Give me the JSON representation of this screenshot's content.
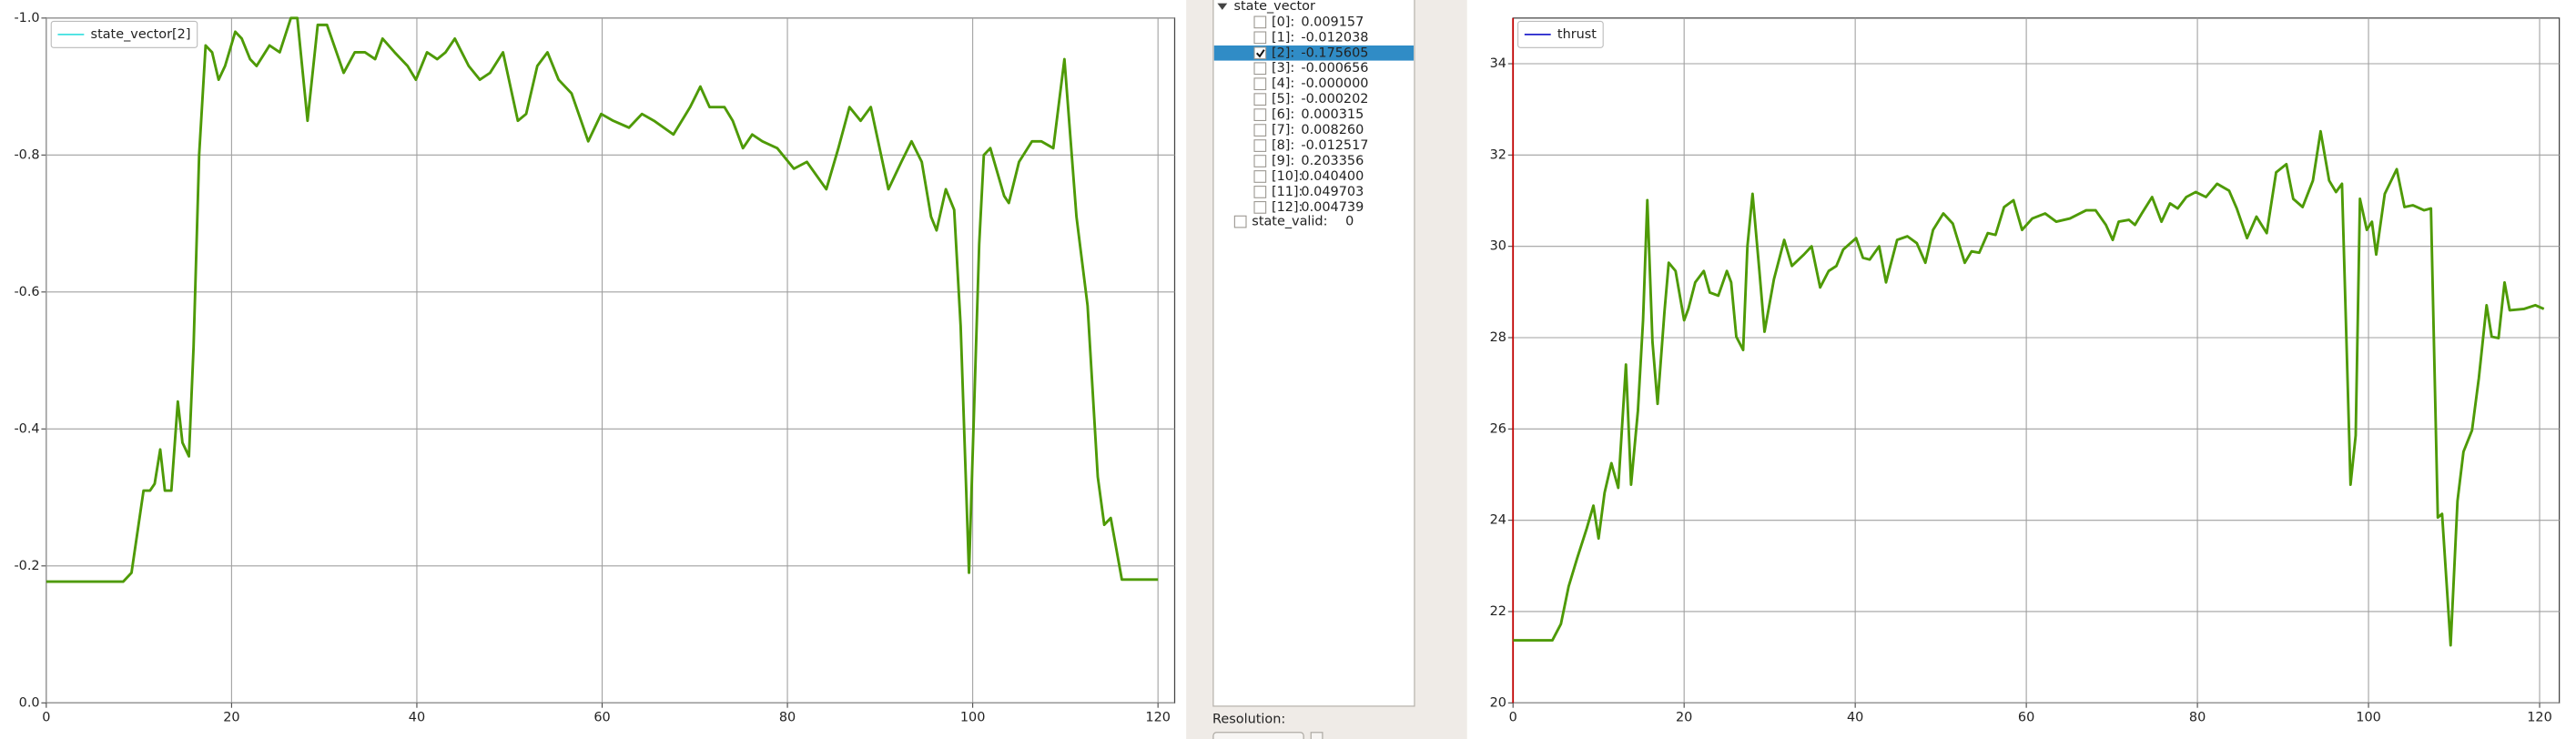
{
  "chart_data": [
    {
      "type": "line",
      "legend": "top-left",
      "grid": true,
      "xlim": [
        0,
        121.8
      ],
      "ylim": [
        0,
        -1.0
      ],
      "xticks": [
        0,
        20,
        40,
        60,
        80,
        100,
        120
      ],
      "yticks": [
        {
          "value": -1.0,
          "label": "-1.0"
        },
        {
          "value": -0.8,
          "label": "-0.8"
        },
        {
          "value": -0.6,
          "label": "-0.6"
        },
        {
          "value": -0.4,
          "label": "-0.4"
        },
        {
          "value": -0.2,
          "label": "-0.2"
        },
        {
          "value": 0,
          "label": "0.0"
        }
      ],
      "x": [
        0,
        8.3,
        9.2,
        10.5,
        11.2,
        11.7,
        12.3,
        12.8,
        13.5,
        14.2,
        14.7,
        15.4,
        15.9,
        16.5,
        17.2,
        17.9,
        18.6,
        19.3,
        20.4,
        21.1,
        22.0,
        22.7,
        24.1,
        25.2,
        26.4,
        27.1,
        28.2,
        29.3,
        30.3,
        32.1,
        33.3,
        34.4,
        35.5,
        36.3,
        37.6,
        39.0,
        39.9,
        41.1,
        42.2,
        43.1,
        44.1,
        45.6,
        46.8,
        47.9,
        49.3,
        50.9,
        51.8,
        53.0,
        54.1,
        55.3,
        56.7,
        58.5,
        59.9,
        61.2,
        62.9,
        64.3,
        65.6,
        67.7,
        69.5,
        70.6,
        71.6,
        73.2,
        74.1,
        75.2,
        76.2,
        77.3,
        78.9,
        80.7,
        82.1,
        84.2,
        85.5,
        86.7,
        87.9,
        89.0,
        90.9,
        92.3,
        93.4,
        94.5,
        95.5,
        96.1,
        97.1,
        98.0,
        98.7,
        99.6,
        100.7,
        101.2,
        101.9,
        103.4,
        103.9,
        105.0,
        106.4,
        107.4,
        108.7,
        109.9,
        111.2,
        112.4,
        113.5,
        114.2,
        114.9,
        116.1,
        120
      ],
      "series": [
        {
          "name": "state_vector[2]",
          "color": "#4e9a06",
          "legend_color": "#3fe0e0",
          "values": [
            -0.177,
            -0.177,
            -0.19,
            -0.31,
            -0.31,
            -0.32,
            -0.37,
            -0.31,
            -0.31,
            -0.44,
            -0.38,
            -0.36,
            -0.52,
            -0.8,
            -0.96,
            -0.95,
            -0.91,
            -0.93,
            -0.98,
            -0.97,
            -0.94,
            -0.93,
            -0.96,
            -0.95,
            -1.0,
            -1.0,
            -0.85,
            -0.99,
            -0.99,
            -0.92,
            -0.95,
            -0.95,
            -0.94,
            -0.97,
            -0.95,
            -0.93,
            -0.91,
            -0.95,
            -0.94,
            -0.95,
            -0.97,
            -0.93,
            -0.91,
            -0.92,
            -0.95,
            -0.85,
            -0.86,
            -0.93,
            -0.95,
            -0.91,
            -0.89,
            -0.82,
            -0.86,
            -0.85,
            -0.84,
            -0.86,
            -0.85,
            -0.83,
            -0.87,
            -0.9,
            -0.87,
            -0.87,
            -0.85,
            -0.81,
            -0.83,
            -0.82,
            -0.81,
            -0.78,
            -0.79,
            -0.75,
            -0.81,
            -0.87,
            -0.85,
            -0.87,
            -0.75,
            -0.79,
            -0.82,
            -0.79,
            -0.71,
            -0.69,
            -0.75,
            -0.72,
            -0.55,
            -0.19,
            -0.67,
            -0.8,
            -0.81,
            -0.74,
            -0.73,
            -0.79,
            -0.82,
            -0.82,
            -0.81,
            -0.94,
            -0.71,
            -0.58,
            -0.33,
            -0.26,
            -0.27,
            -0.18,
            -0.18
          ]
        }
      ]
    },
    {
      "type": "line",
      "legend": "top-left",
      "grid": true,
      "xlim": [
        0,
        122.3
      ],
      "ylim": [
        20,
        35
      ],
      "xticks": [
        0,
        20,
        40,
        60,
        80,
        100,
        120
      ],
      "yticks": [
        20,
        22,
        24,
        26,
        28,
        30,
        32,
        34
      ],
      "x": [
        0,
        4.6,
        5.6,
        6.5,
        7.5,
        8.6,
        9.4,
        10.0,
        10.7,
        11.5,
        12.3,
        13.2,
        13.8,
        14.6,
        15.2,
        15.7,
        16.3,
        16.9,
        17.7,
        18.2,
        19.0,
        20.0,
        20.5,
        21.3,
        22.3,
        23.0,
        24.0,
        25.0,
        25.5,
        26.1,
        26.9,
        27.4,
        28.0,
        28.8,
        29.4,
        30.5,
        31.7,
        32.6,
        34.0,
        34.9,
        35.9,
        36.9,
        37.8,
        38.6,
        40.1,
        40.9,
        41.7,
        42.8,
        43.6,
        44.9,
        46.1,
        47.2,
        48.2,
        49.1,
        50.3,
        51.4,
        52.8,
        53.6,
        54.5,
        55.5,
        56.4,
        57.4,
        58.5,
        59.5,
        60.7,
        62.2,
        63.5,
        65.1,
        67.0,
        68.1,
        69.3,
        70.1,
        70.8,
        72.0,
        72.7,
        73.5,
        74.7,
        75.8,
        76.8,
        77.7,
        78.7,
        79.8,
        81.0,
        82.3,
        83.7,
        84.6,
        85.8,
        86.9,
        88.1,
        89.2,
        90.4,
        91.2,
        92.3,
        93.5,
        94.4,
        95.4,
        96.2,
        96.9,
        97.9,
        98.5,
        99.0,
        99.8,
        100.4,
        100.9,
        101.9,
        103.3,
        104.2,
        105.2,
        106.5,
        107.3,
        108.1,
        108.6,
        109.6,
        110.4,
        111.1,
        112.1,
        112.9,
        113.8,
        114.4,
        115.2,
        115.9,
        116.5,
        118.2,
        119.5,
        120.5
      ],
      "series": [
        {
          "name": "thrust",
          "color": "#4e9a06",
          "legend_color": "#2222cc",
          "values": [
            21.37,
            21.37,
            21.73,
            22.55,
            23.17,
            23.81,
            24.32,
            23.6,
            24.6,
            25.25,
            24.71,
            27.41,
            24.78,
            26.4,
            28.38,
            31.01,
            27.91,
            26.55,
            28.56,
            29.64,
            29.46,
            28.38,
            28.63,
            29.21,
            29.46,
            28.99,
            28.92,
            29.46,
            29.21,
            28.02,
            27.73,
            30.0,
            31.15,
            29.46,
            28.13,
            29.28,
            30.14,
            29.57,
            29.82,
            30.0,
            29.1,
            29.46,
            29.57,
            29.93,
            30.18,
            29.75,
            29.71,
            30.0,
            29.21,
            30.14,
            30.22,
            30.07,
            29.64,
            30.36,
            30.72,
            30.5,
            29.64,
            29.89,
            29.86,
            30.29,
            30.25,
            30.86,
            31.01,
            30.36,
            30.61,
            30.72,
            30.54,
            30.61,
            30.79,
            30.79,
            30.47,
            30.14,
            30.54,
            30.58,
            30.47,
            30.72,
            31.08,
            30.54,
            30.94,
            30.83,
            31.08,
            31.19,
            31.08,
            31.37,
            31.22,
            30.83,
            30.18,
            30.65,
            30.29,
            31.62,
            31.8,
            31.04,
            30.86,
            31.44,
            32.52,
            31.44,
            31.19,
            31.37,
            24.78,
            25.86,
            31.04,
            30.36,
            30.54,
            29.82,
            31.15,
            31.69,
            30.86,
            30.9,
            30.79,
            30.83,
            24.06,
            24.14,
            21.26,
            24.42,
            25.5,
            25.97,
            27.12,
            28.71,
            28.02,
            27.99,
            29.21,
            28.6,
            28.63,
            28.71,
            28.63
          ]
        }
      ]
    }
  ],
  "tree": {
    "root": "state_vector",
    "items": [
      {
        "label": "[0]:",
        "value": "0.009157",
        "checked": false
      },
      {
        "label": "[1]:",
        "value": "-0.012038",
        "checked": false
      },
      {
        "label": "[2]:",
        "value": "-0.175605",
        "checked": true
      },
      {
        "label": "[3]:",
        "value": "-0.000656",
        "checked": false
      },
      {
        "label": "[4]:",
        "value": "-0.000000",
        "checked": false
      },
      {
        "label": "[5]:",
        "value": "-0.000202",
        "checked": false
      },
      {
        "label": "[6]:",
        "value": "0.000315",
        "checked": false
      },
      {
        "label": "[7]:",
        "value": "0.008260",
        "checked": false
      },
      {
        "label": "[8]:",
        "value": "-0.012517",
        "checked": false
      },
      {
        "label": "[9]:",
        "value": "0.203356",
        "checked": false
      },
      {
        "label": "[10]:",
        "value": "0.040400",
        "checked": false
      },
      {
        "label": "[11]:",
        "value": "0.049703",
        "checked": false
      },
      {
        "label": "[12]:",
        "value": "0.004739",
        "checked": false
      }
    ],
    "extra": {
      "label": "state_valid:",
      "value": "0"
    }
  },
  "resolution_label": "Resolution:"
}
